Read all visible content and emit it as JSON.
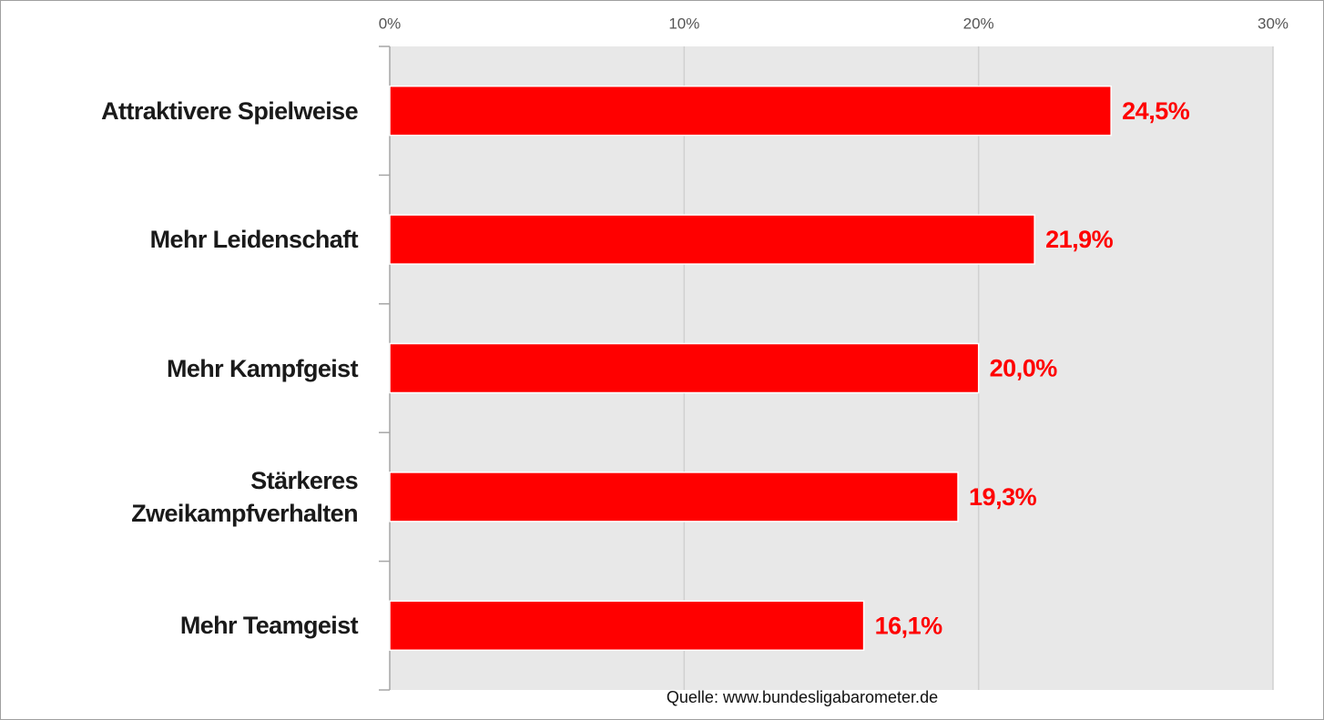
{
  "chart_data": {
    "type": "bar",
    "orientation": "horizontal",
    "categories": [
      "Attraktivere Spielweise",
      "Mehr Leidenschaft",
      "Mehr Kampfgeist",
      "Stärkeres Zweikampfverhalten",
      "Mehr Teamgeist"
    ],
    "values": [
      24.5,
      21.9,
      20.0,
      19.3,
      16.1
    ],
    "value_labels": [
      "24,5%",
      "21,9%",
      "20,0%",
      "19,3%",
      "16,1%"
    ],
    "color": "#ff0000",
    "xlim": [
      0,
      30
    ],
    "xticks": [
      {
        "value": 0,
        "label": "0%"
      },
      {
        "value": 10,
        "label": "10%"
      },
      {
        "value": 20,
        "label": "20%"
      },
      {
        "value": 30,
        "label": "30%"
      }
    ],
    "grid": true,
    "source": "Quelle: www.bundesligabarometer.de"
  }
}
